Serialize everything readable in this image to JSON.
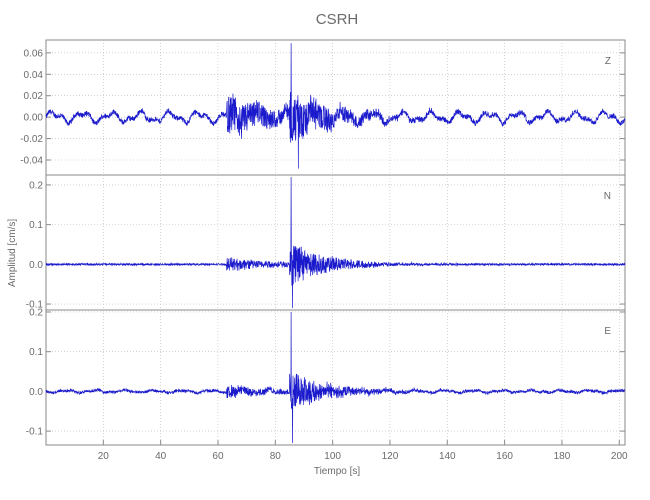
{
  "chart_data": {
    "type": "line",
    "title": "CSRH",
    "xlabel": "Tiempo [s]",
    "ylabel": "Amplitud [cm/s]",
    "xlim": [
      0,
      202
    ],
    "xticks": [
      20,
      40,
      60,
      80,
      100,
      120,
      140,
      160,
      180,
      200
    ],
    "grid": true,
    "line_color": "#1a1acc",
    "text_color": "#6b6b6b",
    "panels": [
      {
        "name": "Z",
        "ylim": [
          -0.054,
          0.072
        ],
        "yticks": [
          -0.04,
          -0.02,
          0.0,
          0.02,
          0.04,
          0.06
        ],
        "ytick_labels": [
          "-0.04",
          "-0.02",
          "0.00",
          "0.02",
          "0.04",
          "0.06"
        ],
        "noise_amp": 0.004,
        "background_amp": 0.006,
        "p_amp": 0.02,
        "s_amp": 0.025,
        "peak": {
          "x": 85.5,
          "value": 0.069
        },
        "trough": {
          "x": 88.0,
          "value": -0.048
        }
      },
      {
        "name": "N",
        "ylim": [
          -0.115,
          0.225
        ],
        "yticks": [
          -0.1,
          0.0,
          0.1,
          0.2
        ],
        "ytick_labels": [
          "-0.1",
          "0.0",
          "0.1",
          "0.2"
        ],
        "noise_amp": 0.004,
        "background_amp": 0.0,
        "p_amp": 0.018,
        "s_amp": 0.055,
        "peak": {
          "x": 85.5,
          "value": 0.22
        },
        "trough": {
          "x": 86.0,
          "value": -0.11
        }
      },
      {
        "name": "E",
        "ylim": [
          -0.135,
          0.205
        ],
        "yticks": [
          -0.1,
          0.0,
          0.1,
          0.2
        ],
        "ytick_labels": [
          "-0.1",
          "0.0",
          "0.1",
          "0.2"
        ],
        "noise_amp": 0.006,
        "background_amp": 0.004,
        "p_amp": 0.015,
        "s_amp": 0.05,
        "peak": {
          "x": 85.5,
          "value": 0.2
        },
        "trough": {
          "x": 86.0,
          "value": -0.13
        }
      }
    ]
  }
}
